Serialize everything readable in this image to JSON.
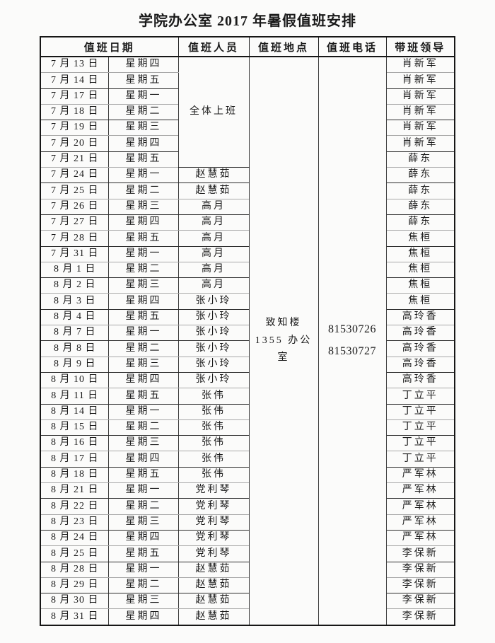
{
  "title": "学院办公室 2017 年暑假值班安排",
  "table": {
    "headers": {
      "date": "值班日期",
      "personnel": "值班人员",
      "location": "值班地点",
      "phone": "值班电话",
      "leader": "带班领导"
    },
    "merged": {
      "personnel_group": {
        "label": "全体上班",
        "row_span": 7
      },
      "location_lines": [
        "致知楼",
        "1355 办公",
        "室"
      ],
      "phone_lines": [
        "81530726",
        "81530727"
      ]
    },
    "rows": [
      {
        "date": "7 月 13 日",
        "weekday": "星期四",
        "person": null,
        "leader": "肖新军"
      },
      {
        "date": "7 月 14 日",
        "weekday": "星期五",
        "person": null,
        "leader": "肖新军"
      },
      {
        "date": "7 月 17 日",
        "weekday": "星期一",
        "person": null,
        "leader": "肖新军"
      },
      {
        "date": "7 月 18 日",
        "weekday": "星期二",
        "person": null,
        "leader": "肖新军"
      },
      {
        "date": "7 月 19 日",
        "weekday": "星期三",
        "person": null,
        "leader": "肖新军"
      },
      {
        "date": "7 月 20 日",
        "weekday": "星期四",
        "person": null,
        "leader": "肖新军"
      },
      {
        "date": "7 月 21 日",
        "weekday": "星期五",
        "person": null,
        "leader": "薛东"
      },
      {
        "date": "7 月 24 日",
        "weekday": "星期一",
        "person": "赵慧茹",
        "leader": "薛东"
      },
      {
        "date": "7 月 25 日",
        "weekday": "星期二",
        "person": "赵慧茹",
        "leader": "薛东"
      },
      {
        "date": "7 月 26 日",
        "weekday": "星期三",
        "person": "高月",
        "leader": "薛东"
      },
      {
        "date": "7 月 27 日",
        "weekday": "星期四",
        "person": "高月",
        "leader": "薛东"
      },
      {
        "date": "7 月 28 日",
        "weekday": "星期五",
        "person": "高月",
        "leader": "焦桓"
      },
      {
        "date": "7 月 31 日",
        "weekday": "星期一",
        "person": "高月",
        "leader": "焦桓"
      },
      {
        "date": "8 月 1 日",
        "weekday": "星期二",
        "person": "高月",
        "leader": "焦桓"
      },
      {
        "date": "8 月 2 日",
        "weekday": "星期三",
        "person": "高月",
        "leader": "焦桓"
      },
      {
        "date": "8 月 3 日",
        "weekday": "星期四",
        "person": "张小玲",
        "leader": "焦桓"
      },
      {
        "date": "8 月 4 日",
        "weekday": "星期五",
        "person": "张小玲",
        "leader": "高玲香"
      },
      {
        "date": "8 月 7 日",
        "weekday": "星期一",
        "person": "张小玲",
        "leader": "高玲香"
      },
      {
        "date": "8 月 8 日",
        "weekday": "星期二",
        "person": "张小玲",
        "leader": "高玲香"
      },
      {
        "date": "8 月 9 日",
        "weekday": "星期三",
        "person": "张小玲",
        "leader": "高玲香"
      },
      {
        "date": "8 月 10 日",
        "weekday": "星期四",
        "person": "张小玲",
        "leader": "高玲香"
      },
      {
        "date": "8 月 11 日",
        "weekday": "星期五",
        "person": "张伟",
        "leader": "丁立平"
      },
      {
        "date": "8 月 14 日",
        "weekday": "星期一",
        "person": "张伟",
        "leader": "丁立平"
      },
      {
        "date": "8 月 15 日",
        "weekday": "星期二",
        "person": "张伟",
        "leader": "丁立平"
      },
      {
        "date": "8 月 16 日",
        "weekday": "星期三",
        "person": "张伟",
        "leader": "丁立平"
      },
      {
        "date": "8 月 17 日",
        "weekday": "星期四",
        "person": "张伟",
        "leader": "丁立平"
      },
      {
        "date": "8 月 18 日",
        "weekday": "星期五",
        "person": "张伟",
        "leader": "严军林"
      },
      {
        "date": "8 月 21 日",
        "weekday": "星期一",
        "person": "党利琴",
        "leader": "严军林"
      },
      {
        "date": "8 月 22 日",
        "weekday": "星期二",
        "person": "党利琴",
        "leader": "严军林"
      },
      {
        "date": "8 月 23 日",
        "weekday": "星期三",
        "person": "党利琴",
        "leader": "严军林"
      },
      {
        "date": "8 月 24 日",
        "weekday": "星期四",
        "person": "党利琴",
        "leader": "严军林"
      },
      {
        "date": "8 月 25 日",
        "weekday": "星期五",
        "person": "党利琴",
        "leader": "李保新"
      },
      {
        "date": "8 月 28 日",
        "weekday": "星期一",
        "person": "赵慧茹",
        "leader": "李保新"
      },
      {
        "date": "8 月 29 日",
        "weekday": "星期二",
        "person": "赵慧茹",
        "leader": "李保新"
      },
      {
        "date": "8 月 30 日",
        "weekday": "星期三",
        "person": "赵慧茹",
        "leader": "李保新"
      },
      {
        "date": "8 月 31 日",
        "weekday": "星期四",
        "person": "赵慧茹",
        "leader": "李保新"
      }
    ]
  }
}
